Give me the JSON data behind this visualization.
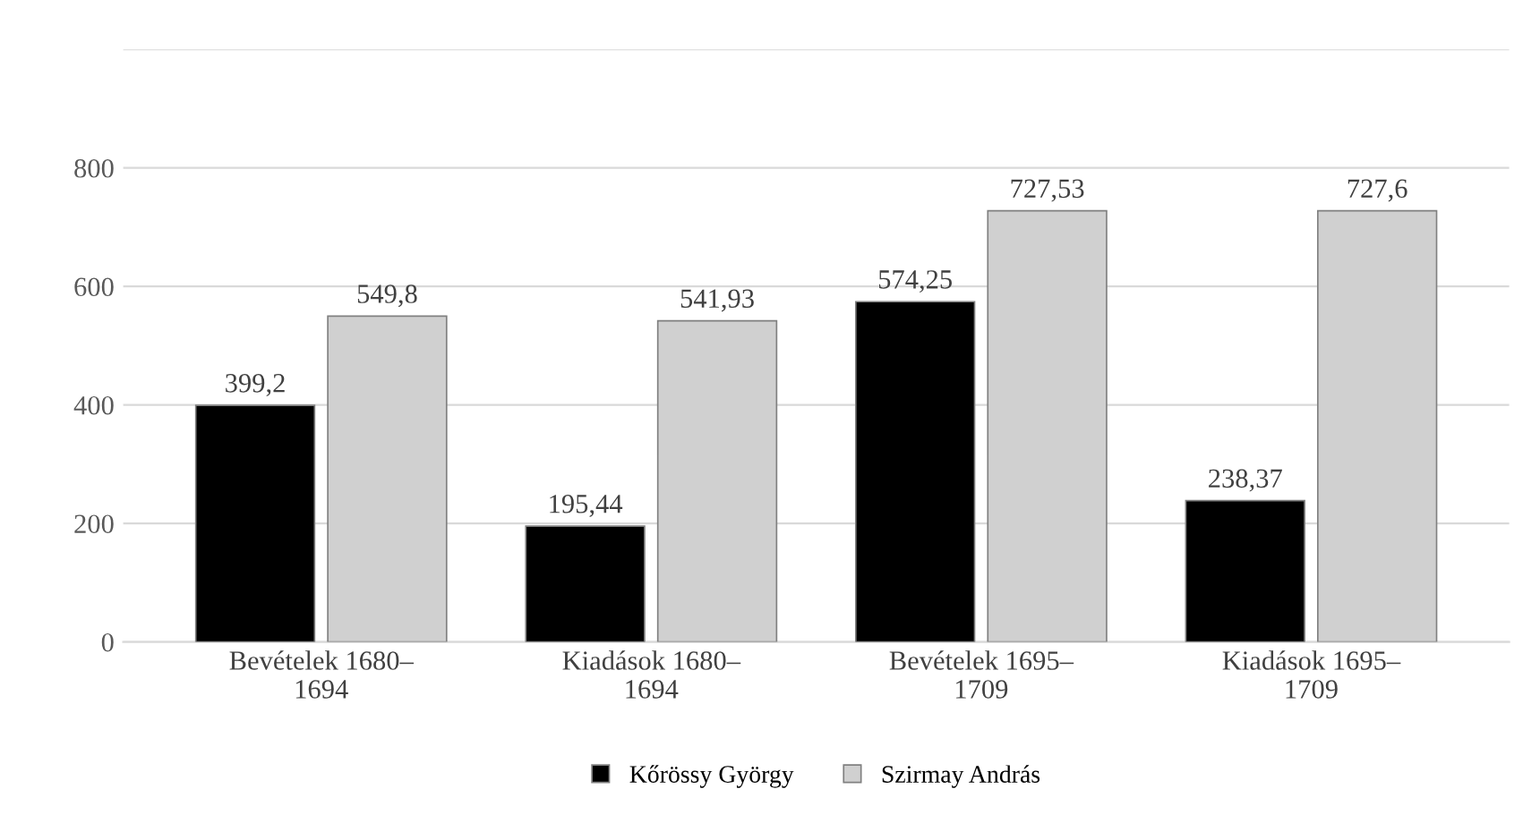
{
  "chart_data": {
    "type": "bar",
    "categories": [
      "Bevételek 1680–\n1694",
      "Kiadások 1680–\n1694",
      "Bevételek 1695–\n1709",
      "Kiadások 1695–\n1709"
    ],
    "series": [
      {
        "name": "Kőrössy György",
        "color": "#000000",
        "values": [
          399.2,
          195.44,
          574.25,
          238.37
        ],
        "value_labels": [
          "399,2",
          "195,44",
          "574,25",
          "238,37"
        ]
      },
      {
        "name": "Szirmay András",
        "color": "#d0d0d0",
        "values": [
          549.8,
          541.93,
          727.53,
          727.6
        ],
        "value_labels": [
          "549,8",
          "541,93",
          "727,53",
          "727,6"
        ]
      }
    ],
    "ylim": [
      0,
      1000
    ],
    "yticks": [
      0,
      200,
      400,
      600,
      800,
      {
        "value": 1000,
        "label": null
      }
    ],
    "grid": "y",
    "legend": "bottom"
  }
}
